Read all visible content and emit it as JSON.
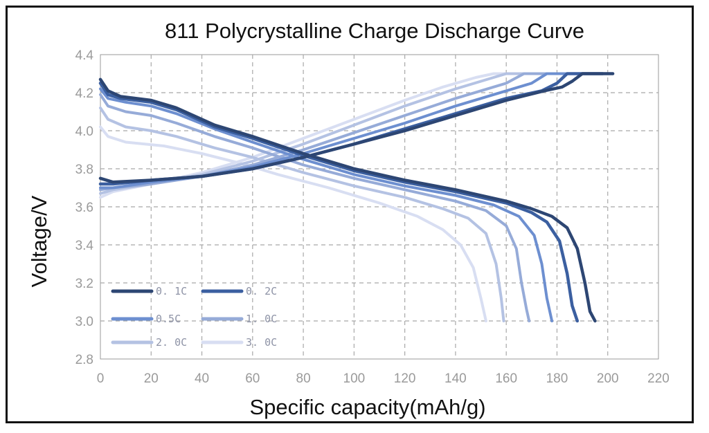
{
  "chart_data": {
    "type": "line",
    "title": "811 Polycrystalline Charge Discharge Curve",
    "xlabel": "Specific capacity(mAh/g)",
    "ylabel": "Voltage/V",
    "xlim": [
      0,
      220
    ],
    "ylim": [
      2.8,
      4.4
    ],
    "xticks": [
      "0",
      "20",
      "40",
      "60",
      "80",
      "100",
      "120",
      "140",
      "160",
      "180",
      "200",
      "220"
    ],
    "yticks": [
      "4.4",
      "4.2",
      "4.0",
      "3.8",
      "3.6",
      "3.4",
      "3.2",
      "3.0",
      "2.8"
    ],
    "grid": true,
    "legend_position": "bottom-left",
    "series": [
      {
        "name": "0. 1C",
        "color": "#2d4673",
        "width": 4.5,
        "discharge": [
          [
            0,
            4.27
          ],
          [
            3,
            4.21
          ],
          [
            8,
            4.18
          ],
          [
            20,
            4.16
          ],
          [
            30,
            4.12
          ],
          [
            45,
            4.03
          ],
          [
            60,
            3.97
          ],
          [
            80,
            3.88
          ],
          [
            100,
            3.8
          ],
          [
            120,
            3.74
          ],
          [
            140,
            3.69
          ],
          [
            160,
            3.63
          ],
          [
            170,
            3.59
          ],
          [
            178,
            3.55
          ],
          [
            184,
            3.49
          ],
          [
            188,
            3.38
          ],
          [
            191,
            3.2
          ],
          [
            193,
            3.05
          ],
          [
            195,
            3.0
          ]
        ],
        "charge": [
          [
            0,
            3.75
          ],
          [
            5,
            3.73
          ],
          [
            20,
            3.74
          ],
          [
            40,
            3.76
          ],
          [
            60,
            3.8
          ],
          [
            80,
            3.86
          ],
          [
            100,
            3.93
          ],
          [
            120,
            4.0
          ],
          [
            140,
            4.08
          ],
          [
            160,
            4.16
          ],
          [
            175,
            4.21
          ],
          [
            182,
            4.23
          ],
          [
            186,
            4.26
          ],
          [
            190,
            4.3
          ],
          [
            202,
            4.3
          ]
        ]
      },
      {
        "name": "0. 2C",
        "color": "#3b5fa0",
        "width": 4.5,
        "discharge": [
          [
            0,
            4.25
          ],
          [
            3,
            4.19
          ],
          [
            8,
            4.17
          ],
          [
            20,
            4.15
          ],
          [
            30,
            4.11
          ],
          [
            45,
            4.02
          ],
          [
            60,
            3.96
          ],
          [
            80,
            3.87
          ],
          [
            100,
            3.79
          ],
          [
            120,
            3.73
          ],
          [
            140,
            3.68
          ],
          [
            160,
            3.62
          ],
          [
            170,
            3.57
          ],
          [
            176,
            3.52
          ],
          [
            181,
            3.42
          ],
          [
            184,
            3.25
          ],
          [
            186,
            3.08
          ],
          [
            188,
            3.0
          ]
        ],
        "charge": [
          [
            0,
            3.72
          ],
          [
            5,
            3.72
          ],
          [
            20,
            3.74
          ],
          [
            40,
            3.76
          ],
          [
            60,
            3.8
          ],
          [
            80,
            3.86
          ],
          [
            100,
            3.93
          ],
          [
            120,
            4.01
          ],
          [
            140,
            4.09
          ],
          [
            160,
            4.17
          ],
          [
            174,
            4.21
          ],
          [
            180,
            4.25
          ],
          [
            184,
            4.3
          ],
          [
            198,
            4.3
          ]
        ]
      },
      {
        "name": "0.5C",
        "color": "#6d8fd0",
        "width": 4,
        "discharge": [
          [
            0,
            4.22
          ],
          [
            3,
            4.17
          ],
          [
            10,
            4.15
          ],
          [
            20,
            4.13
          ],
          [
            30,
            4.09
          ],
          [
            45,
            4.01
          ],
          [
            60,
            3.94
          ],
          [
            80,
            3.85
          ],
          [
            100,
            3.77
          ],
          [
            120,
            3.71
          ],
          [
            140,
            3.66
          ],
          [
            155,
            3.61
          ],
          [
            165,
            3.55
          ],
          [
            171,
            3.45
          ],
          [
            174,
            3.3
          ],
          [
            176,
            3.12
          ],
          [
            178,
            3.0
          ]
        ],
        "charge": [
          [
            0,
            3.7
          ],
          [
            5,
            3.7
          ],
          [
            20,
            3.73
          ],
          [
            40,
            3.76
          ],
          [
            60,
            3.81
          ],
          [
            80,
            3.88
          ],
          [
            100,
            3.96
          ],
          [
            120,
            4.04
          ],
          [
            140,
            4.13
          ],
          [
            160,
            4.21
          ],
          [
            170,
            4.25
          ],
          [
            176,
            4.3
          ],
          [
            190,
            4.3
          ]
        ]
      },
      {
        "name": "1. 0C",
        "color": "#96abd8",
        "width": 4,
        "discharge": [
          [
            0,
            4.19
          ],
          [
            3,
            4.13
          ],
          [
            10,
            4.1
          ],
          [
            20,
            4.08
          ],
          [
            30,
            4.04
          ],
          [
            45,
            3.97
          ],
          [
            60,
            3.91
          ],
          [
            80,
            3.82
          ],
          [
            100,
            3.75
          ],
          [
            120,
            3.69
          ],
          [
            140,
            3.63
          ],
          [
            152,
            3.58
          ],
          [
            160,
            3.5
          ],
          [
            164,
            3.38
          ],
          [
            166,
            3.2
          ],
          [
            168,
            3.06
          ],
          [
            169,
            3.0
          ]
        ],
        "charge": [
          [
            0,
            3.69
          ],
          [
            5,
            3.7
          ],
          [
            20,
            3.72
          ],
          [
            40,
            3.76
          ],
          [
            60,
            3.82
          ],
          [
            80,
            3.9
          ],
          [
            100,
            3.99
          ],
          [
            120,
            4.08
          ],
          [
            140,
            4.17
          ],
          [
            160,
            4.25
          ],
          [
            167,
            4.3
          ],
          [
            180,
            4.3
          ]
        ]
      },
      {
        "name": "2. 0C",
        "color": "#b4c2e3",
        "width": 4,
        "discharge": [
          [
            0,
            4.12
          ],
          [
            3,
            4.06
          ],
          [
            10,
            4.02
          ],
          [
            20,
            4.0
          ],
          [
            30,
            3.97
          ],
          [
            45,
            3.91
          ],
          [
            60,
            3.86
          ],
          [
            80,
            3.78
          ],
          [
            100,
            3.71
          ],
          [
            120,
            3.65
          ],
          [
            135,
            3.59
          ],
          [
            145,
            3.54
          ],
          [
            152,
            3.46
          ],
          [
            156,
            3.3
          ],
          [
            158,
            3.12
          ],
          [
            159,
            3.0
          ]
        ],
        "charge": [
          [
            0,
            3.67
          ],
          [
            5,
            3.69
          ],
          [
            20,
            3.72
          ],
          [
            40,
            3.77
          ],
          [
            60,
            3.84
          ],
          [
            80,
            3.93
          ],
          [
            100,
            4.03
          ],
          [
            120,
            4.13
          ],
          [
            140,
            4.22
          ],
          [
            155,
            4.28
          ],
          [
            160,
            4.3
          ],
          [
            172,
            4.3
          ]
        ]
      },
      {
        "name": "3. 0C",
        "color": "#d8def2",
        "width": 4,
        "discharge": [
          [
            0,
            4.02
          ],
          [
            3,
            3.97
          ],
          [
            10,
            3.94
          ],
          [
            25,
            3.92
          ],
          [
            40,
            3.88
          ],
          [
            55,
            3.83
          ],
          [
            70,
            3.77
          ],
          [
            90,
            3.7
          ],
          [
            110,
            3.62
          ],
          [
            125,
            3.55
          ],
          [
            135,
            3.48
          ],
          [
            142,
            3.4
          ],
          [
            147,
            3.28
          ],
          [
            150,
            3.12
          ],
          [
            152,
            3.0
          ]
        ],
        "charge": [
          [
            0,
            3.65
          ],
          [
            5,
            3.68
          ],
          [
            20,
            3.72
          ],
          [
            40,
            3.78
          ],
          [
            60,
            3.86
          ],
          [
            80,
            3.96
          ],
          [
            100,
            4.06
          ],
          [
            120,
            4.16
          ],
          [
            135,
            4.23
          ],
          [
            148,
            4.28
          ],
          [
            155,
            4.3
          ],
          [
            168,
            4.3
          ]
        ]
      }
    ]
  }
}
